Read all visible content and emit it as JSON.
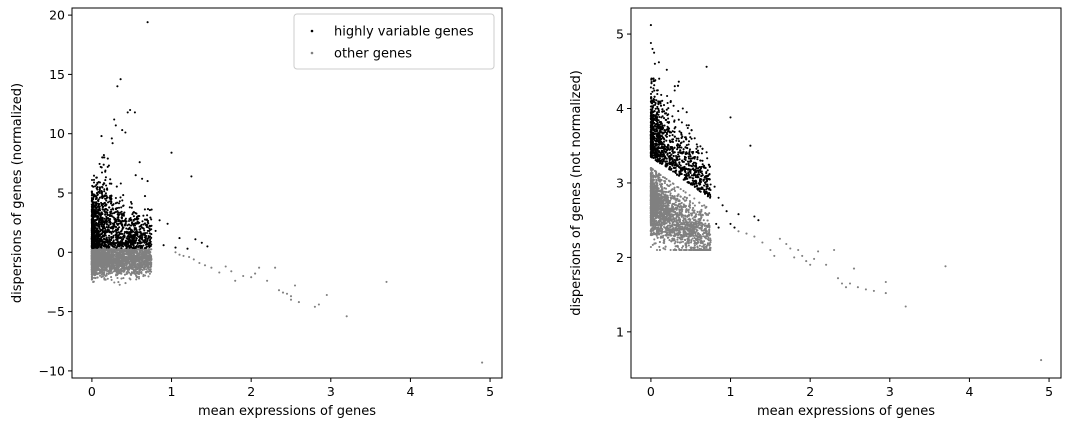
{
  "colors": {
    "highly_variable": "#000000",
    "other": "#808080",
    "axes": "#000000",
    "legend_border": "#cccccc"
  },
  "chart_data": [
    {
      "type": "scatter",
      "xlabel": "mean expressions of genes",
      "ylabel": "dispersions of genes (normalized)",
      "xlim": [
        -0.25,
        5.15
      ],
      "ylim": [
        -10.6,
        20.6
      ],
      "xticks": [
        0,
        1,
        2,
        3,
        4,
        5
      ],
      "yticks": [
        -10,
        -5,
        0,
        5,
        10,
        15,
        20
      ],
      "legend": {
        "placement": "top-right",
        "entries": [
          "highly variable genes",
          "other genes"
        ]
      },
      "series": [
        {
          "name": "highly variable genes",
          "color": "#000000",
          "points": [
            [
              0.7,
              19.4
            ],
            [
              0.36,
              14.6
            ],
            [
              0.32,
              14.0
            ],
            [
              0.48,
              12.0
            ],
            [
              0.54,
              11.8
            ],
            [
              0.45,
              11.8
            ],
            [
              0.28,
              11.2
            ],
            [
              0.3,
              10.7
            ],
            [
              0.38,
              10.3
            ],
            [
              0.42,
              10.1
            ],
            [
              0.12,
              9.8
            ],
            [
              0.25,
              9.6
            ],
            [
              0.26,
              9.2
            ],
            [
              1.0,
              8.4
            ],
            [
              0.15,
              8.2
            ],
            [
              0.2,
              7.9
            ],
            [
              0.6,
              7.6
            ],
            [
              0.11,
              7.2
            ],
            [
              0.17,
              6.9
            ],
            [
              0.55,
              6.5
            ],
            [
              1.25,
              6.4
            ],
            [
              0.63,
              6.2
            ],
            [
              0.7,
              6.0
            ],
            [
              0.14,
              5.7
            ],
            [
              0.19,
              5.3
            ],
            [
              0.1,
              5.0
            ],
            [
              0.22,
              4.6
            ],
            [
              0.35,
              4.3
            ],
            [
              0.5,
              4.1
            ],
            [
              0.75,
              3.6
            ],
            [
              0.85,
              2.7
            ],
            [
              0.95,
              2.4
            ],
            [
              0.65,
              2.0
            ],
            [
              0.3,
              2.6
            ],
            [
              0.4,
              3.2
            ],
            [
              0.8,
              1.8
            ],
            [
              1.1,
              1.2
            ],
            [
              1.3,
              1.1
            ],
            [
              1.38,
              0.8
            ],
            [
              1.45,
              0.5
            ],
            [
              0.9,
              0.6
            ],
            [
              1.05,
              0.4
            ],
            [
              1.2,
              0.3
            ]
          ]
        },
        {
          "name": "other genes",
          "color": "#808080",
          "points": [
            [
              3.7,
              -2.5
            ],
            [
              2.95,
              -3.6
            ],
            [
              3.2,
              -5.4
            ],
            [
              4.9,
              -9.3
            ],
            [
              2.85,
              -4.4
            ],
            [
              2.8,
              -4.6
            ],
            [
              2.6,
              -4.2
            ],
            [
              2.55,
              -2.8
            ],
            [
              2.5,
              -4.0
            ],
            [
              2.4,
              -3.4
            ],
            [
              2.35,
              -3.2
            ],
            [
              2.3,
              -1.3
            ],
            [
              2.2,
              -2.4
            ],
            [
              2.1,
              -1.3
            ],
            [
              2.0,
              -2.1
            ],
            [
              1.9,
              -2.0
            ],
            [
              1.8,
              -2.4
            ],
            [
              1.75,
              -1.6
            ],
            [
              1.68,
              -1.2
            ],
            [
              1.6,
              -1.7
            ],
            [
              1.5,
              -1.3
            ],
            [
              1.42,
              -1.1
            ],
            [
              1.35,
              -0.9
            ],
            [
              1.28,
              -0.6
            ],
            [
              1.22,
              -0.4
            ],
            [
              1.15,
              -0.3
            ],
            [
              1.1,
              -0.2
            ],
            [
              1.05,
              0.0
            ],
            [
              2.5,
              -3.7
            ],
            [
              2.45,
              -3.5
            ],
            [
              2.05,
              -1.8
            ]
          ]
        }
      ]
    },
    {
      "type": "scatter",
      "xlabel": "mean expressions of genes",
      "ylabel": "dispersions of genes (not normalized)",
      "xlim": [
        -0.25,
        5.15
      ],
      "ylim": [
        0.38,
        5.35
      ],
      "xticks": [
        0,
        1,
        2,
        3,
        4,
        5
      ],
      "yticks": [
        1,
        2,
        3,
        4,
        5
      ],
      "series": [
        {
          "name": "highly variable genes",
          "color": "#000000",
          "points": [
            [
              0.0,
              5.12
            ],
            [
              0.0,
              4.88
            ],
            [
              0.02,
              4.8
            ],
            [
              0.04,
              4.75
            ],
            [
              0.05,
              4.6
            ],
            [
              0.1,
              4.62
            ],
            [
              0.7,
              4.56
            ],
            [
              0.2,
              4.52
            ],
            [
              0.35,
              4.36
            ],
            [
              0.3,
              4.3
            ],
            [
              0.25,
              4.1
            ],
            [
              0.4,
              4.0
            ],
            [
              0.45,
              3.95
            ],
            [
              1.0,
              3.88
            ],
            [
              0.35,
              3.85
            ],
            [
              0.55,
              3.6
            ],
            [
              1.25,
              3.5
            ],
            [
              0.6,
              3.4
            ],
            [
              0.65,
              3.25
            ],
            [
              0.7,
              3.05
            ],
            [
              0.8,
              2.95
            ],
            [
              0.85,
              2.8
            ],
            [
              0.9,
              2.7
            ],
            [
              0.95,
              2.62
            ],
            [
              1.1,
              2.58
            ],
            [
              1.3,
              2.55
            ],
            [
              1.35,
              2.5
            ],
            [
              1.0,
              2.45
            ],
            [
              0.82,
              2.45
            ],
            [
              0.85,
              2.4
            ],
            [
              1.05,
              2.4
            ]
          ]
        },
        {
          "name": "other genes",
          "color": "#808080",
          "points": [
            [
              4.9,
              0.62
            ],
            [
              3.7,
              1.88
            ],
            [
              3.2,
              1.34
            ],
            [
              2.95,
              1.67
            ],
            [
              2.95,
              1.52
            ],
            [
              2.8,
              1.55
            ],
            [
              2.7,
              1.57
            ],
            [
              2.6,
              1.6
            ],
            [
              2.55,
              1.85
            ],
            [
              2.5,
              1.65
            ],
            [
              2.45,
              1.6
            ],
            [
              2.4,
              1.65
            ],
            [
              2.35,
              1.72
            ],
            [
              2.3,
              2.1
            ],
            [
              2.2,
              1.9
            ],
            [
              2.1,
              2.08
            ],
            [
              2.05,
              1.98
            ],
            [
              2.0,
              1.9
            ],
            [
              1.95,
              1.95
            ],
            [
              1.9,
              2.02
            ],
            [
              1.85,
              2.1
            ],
            [
              1.8,
              2.0
            ],
            [
              1.75,
              2.12
            ],
            [
              1.7,
              2.18
            ],
            [
              1.62,
              2.25
            ],
            [
              1.55,
              2.02
            ],
            [
              1.5,
              2.1
            ],
            [
              1.4,
              2.2
            ],
            [
              1.3,
              2.28
            ],
            [
              1.2,
              2.32
            ],
            [
              1.1,
              2.35
            ],
            [
              0.0,
              2.14
            ],
            [
              0.0,
              2.3
            ],
            [
              0.0,
              2.45
            ]
          ]
        }
      ]
    }
  ]
}
